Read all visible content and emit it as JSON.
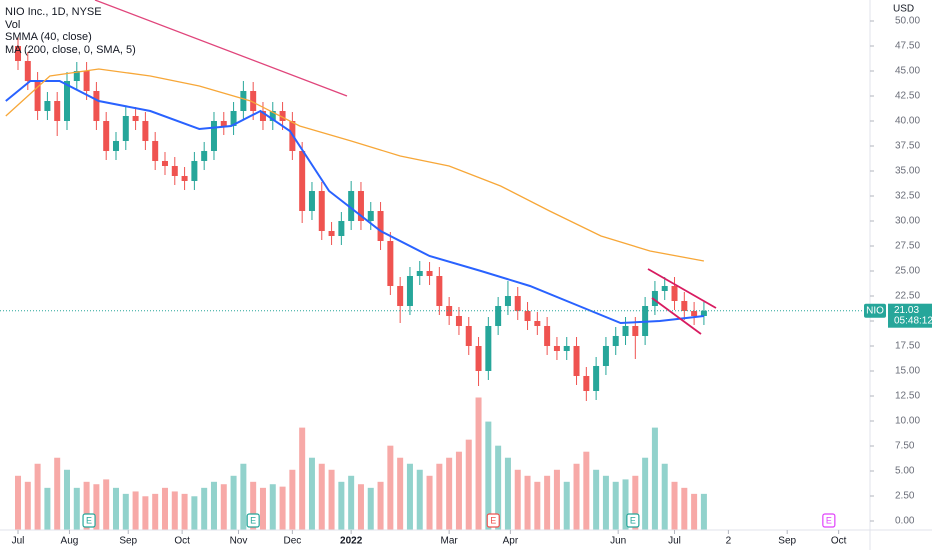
{
  "chart_data": {
    "type": "candlestick",
    "title": "NIO Inc., 1D, NYSE",
    "volume_name": "Vol",
    "currency": "USD",
    "ticker": "NIO",
    "last_price": 21.03,
    "countdown": "05:48:12",
    "up_color": "#26a69a",
    "down_color": "#ef5350",
    "grid": false,
    "x": [
      0,
      4,
      8,
      12,
      16,
      20,
      24,
      28,
      32,
      36,
      40,
      44,
      48,
      52,
      56,
      60,
      64,
      68,
      72,
      76,
      80,
      84,
      88,
      92,
      96,
      100,
      104,
      108,
      112,
      116,
      120,
      124,
      128,
      132,
      136,
      140,
      144,
      148,
      152,
      156,
      160,
      164,
      168,
      172,
      176,
      180,
      184,
      188,
      192,
      196,
      200,
      204,
      208,
      212,
      216,
      220,
      224,
      228,
      232,
      236,
      240,
      244,
      248,
      252,
      256,
      260,
      264,
      268,
      272,
      276,
      280
    ],
    "open": [
      47.5,
      46,
      44,
      41,
      42,
      40,
      44,
      45,
      43,
      40,
      37,
      38,
      40.5,
      40,
      38,
      36,
      35.5,
      34.5,
      34,
      36,
      37,
      40,
      39.5,
      41,
      43,
      41,
      40,
      41,
      40,
      37,
      31,
      33,
      29,
      28.5,
      30,
      33,
      30,
      31,
      28,
      23.5,
      21.5,
      24.5,
      25,
      24.5,
      21.5,
      20.5,
      19.5,
      17.5,
      15,
      19.5,
      21.5,
      22.5,
      21,
      20,
      19.5,
      17.5,
      17,
      17.5,
      14.5,
      13,
      15.5,
      17.5,
      18.5,
      19.5,
      18.5,
      21.5,
      23,
      23.5,
      22,
      21,
      20.5
    ],
    "high": [
      48.4,
      46.9,
      44.9,
      42.9,
      42.9,
      44.9,
      45.9,
      45.9,
      43.9,
      40.9,
      38.9,
      41.4,
      41.4,
      40.9,
      38.9,
      36.9,
      36.4,
      35.4,
      36.9,
      37.9,
      40.9,
      40.9,
      41.9,
      44,
      43.9,
      41.9,
      41.9,
      41.9,
      40.9,
      37.9,
      33.9,
      33.9,
      29.9,
      30.9,
      34,
      33.9,
      31.9,
      31.9,
      28.9,
      24.4,
      25.4,
      26,
      25.9,
      25.4,
      22.4,
      21.4,
      20.4,
      18.4,
      20.4,
      22.4,
      24,
      23.4,
      21.9,
      20.9,
      20.4,
      18.4,
      18.4,
      18.4,
      15.4,
      16.4,
      18.4,
      19.4,
      20.4,
      20.4,
      22.4,
      24,
      24.4,
      24.4,
      22.9,
      21.9,
      21.9
    ],
    "low": [
      45.1,
      43.1,
      40.1,
      40.1,
      38.5,
      39.1,
      43.1,
      42.1,
      39.1,
      36.1,
      36.1,
      37.1,
      39.1,
      37.1,
      35.1,
      34.6,
      33.6,
      33.1,
      33.1,
      35.1,
      36.1,
      38.6,
      38.6,
      40.1,
      40.1,
      39.1,
      39.1,
      39.1,
      36.1,
      29.8,
      30.1,
      28.1,
      27.6,
      27.6,
      29.1,
      29.1,
      29.1,
      27.1,
      22.6,
      19.8,
      20.6,
      23.6,
      23.6,
      20.6,
      19.6,
      18.6,
      16.6,
      13.5,
      14.1,
      18.6,
      20.6,
      20.1,
      19.1,
      18.6,
      16.6,
      16.1,
      16.1,
      13.6,
      12,
      12.1,
      14.6,
      16.6,
      17.6,
      16.2,
      17.6,
      20.6,
      22.1,
      21.1,
      20.1,
      19.6,
      19.6
    ],
    "close": [
      46,
      44,
      41,
      42,
      40,
      44,
      45,
      43,
      40,
      37,
      38,
      40.5,
      40,
      38,
      36,
      35.5,
      34.5,
      34,
      36,
      37,
      40,
      39.5,
      41,
      43,
      41,
      40,
      41,
      40,
      37,
      31,
      33,
      29,
      28.5,
      30,
      33,
      30,
      31,
      28,
      23.5,
      21.5,
      24.5,
      25,
      24.5,
      21.5,
      20.5,
      19.5,
      17.5,
      15,
      19.5,
      21.5,
      22.5,
      21,
      20,
      19.5,
      17.5,
      17,
      17.5,
      14.5,
      13,
      15.5,
      17.5,
      18.5,
      19.5,
      18.5,
      21.5,
      23,
      23.5,
      22,
      21,
      20.5,
      21.03
    ],
    "volume": [
      45,
      40,
      55,
      35,
      60,
      50,
      35,
      40,
      38,
      42,
      35,
      30,
      32,
      28,
      30,
      35,
      32,
      30,
      28,
      35,
      40,
      38,
      45,
      55,
      40,
      35,
      38,
      36,
      50,
      85,
      60,
      55,
      50,
      40,
      45,
      38,
      35,
      40,
      70,
      60,
      55,
      50,
      45,
      55,
      60,
      65,
      75,
      110,
      90,
      70,
      60,
      50,
      45,
      40,
      45,
      50,
      40,
      55,
      65,
      50,
      45,
      40,
      42,
      45,
      60,
      85,
      55,
      40,
      35,
      30,
      30
    ],
    "overlays": [
      {
        "name": "SMMA (40, close)",
        "color": "#2962ff",
        "x": [
          -5,
          5,
          17,
          33,
          54,
          74,
          87,
          99,
          111,
          127,
          148,
          168,
          189,
          209,
          229,
          246,
          262,
          280
        ],
        "values": [
          42,
          44,
          44,
          42,
          41,
          39.2,
          39.5,
          41,
          39,
          33,
          29,
          26.5,
          25,
          23.5,
          21.5,
          19.8,
          20,
          20.5
        ]
      },
      {
        "name": "MA (200, close, 0, SMA, 5)",
        "color": "#f7a738",
        "x": [
          -5,
          13,
          33,
          54,
          74,
          95,
          115,
          136,
          156,
          176,
          197,
          217,
          238,
          258,
          280
        ],
        "values": [
          40.5,
          44.5,
          45.2,
          44.5,
          43.5,
          42,
          39.5,
          38,
          36.5,
          35.5,
          33.5,
          31,
          28.5,
          27,
          26
        ]
      }
    ],
    "events": [
      {
        "x": 29,
        "label": "E",
        "color": "#26a69a"
      },
      {
        "x": 96,
        "label": "E",
        "color": "#26a69a"
      },
      {
        "x": 194,
        "label": "E",
        "color": "#ef5350"
      },
      {
        "x": 251,
        "label": "E",
        "color": "#26a69a"
      },
      {
        "x": 331,
        "label": "E",
        "color": "#e040fb"
      }
    ],
    "xlim": [
      -7.35,
      347.8
    ],
    "xticks": [
      {
        "value": 0,
        "label": "Jul"
      },
      {
        "value": 21,
        "label": "Aug"
      },
      {
        "value": 45,
        "label": "Sep"
      },
      {
        "value": 67,
        "label": "Oct"
      },
      {
        "value": 90,
        "label": "Nov"
      },
      {
        "value": 112,
        "label": "Dec"
      },
      {
        "value": 136,
        "label": "2022",
        "bold": true
      },
      {
        "value": 176,
        "label": "Mar"
      },
      {
        "value": 201,
        "label": "Apr"
      },
      {
        "value": 245,
        "label": "Jun"
      },
      {
        "value": 268,
        "label": "Jul"
      },
      {
        "value": 290,
        "label": "2"
      },
      {
        "value": 314,
        "label": "Sep"
      },
      {
        "value": 335,
        "label": "Oct"
      }
    ],
    "ylim": [
      -0.9,
      52.1
    ],
    "yticks": [
      {
        "value": 0,
        "label": "0.00"
      },
      {
        "value": 2.5,
        "label": "2.50"
      },
      {
        "value": 5,
        "label": "5.00"
      },
      {
        "value": 7.5,
        "label": "7.50"
      },
      {
        "value": 10,
        "label": "10.00"
      },
      {
        "value": 12.5,
        "label": "12.50"
      },
      {
        "value": 15,
        "label": "15.00"
      },
      {
        "value": 17.5,
        "label": "17.50"
      },
      {
        "value": 20,
        "label": "20.00"
      },
      {
        "value": 22.5,
        "label": "22.50"
      },
      {
        "value": 25,
        "label": "25.00"
      },
      {
        "value": 27.5,
        "label": "27.50"
      },
      {
        "value": 30,
        "label": "30.00"
      },
      {
        "value": 32.5,
        "label": "32.50"
      },
      {
        "value": 35,
        "label": "35.00"
      },
      {
        "value": 37.5,
        "label": "37.50"
      },
      {
        "value": 40,
        "label": "40.00"
      },
      {
        "value": 42.5,
        "label": "42.50"
      },
      {
        "value": 45,
        "label": "45.00"
      },
      {
        "value": 47.5,
        "label": "47.50"
      },
      {
        "value": 50,
        "label": "50.00"
      }
    ],
    "y2lim": [
      0,
      440
    ]
  }
}
